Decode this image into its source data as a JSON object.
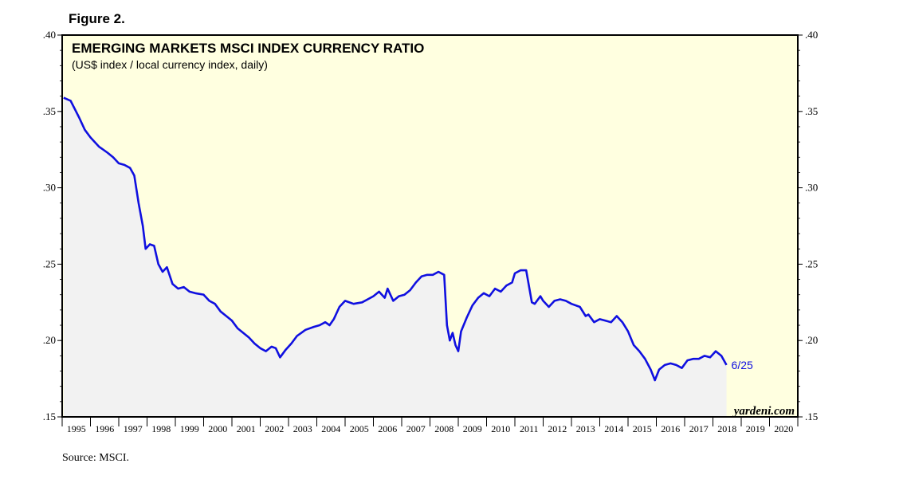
{
  "figure_label": "Figure 2.",
  "source": "Source: MSCI.",
  "chart_data": {
    "type": "area",
    "title": "EMERGING MARKETS MSCI INDEX CURRENCY RATIO",
    "subtitle": "(US$ index / local currency index, daily)",
    "watermark": "yardeni.com",
    "end_label": "6/25",
    "ylim": [
      0.15,
      0.4
    ],
    "xlim": [
      1995.0,
      2021.0
    ],
    "y_ticks": [
      ".40",
      ".35",
      ".30",
      ".25",
      ".20",
      ".15"
    ],
    "y_tick_values": [
      0.4,
      0.35,
      0.3,
      0.25,
      0.2,
      0.15
    ],
    "x_tick_labels": [
      "1995",
      "1996",
      "1997",
      "1998",
      "1999",
      "2000",
      "2001",
      "2002",
      "2003",
      "2004",
      "2005",
      "2006",
      "2007",
      "2008",
      "2009",
      "2010",
      "2011",
      "2012",
      "2013",
      "2014",
      "2015",
      "2016",
      "2017",
      "2018",
      "2019",
      "2020"
    ],
    "colors": {
      "line": "#1010e0",
      "plot_bg": "#ffffe0",
      "area_fill": "#f2f2f2",
      "end_label": "#1010e0"
    },
    "series": [
      {
        "name": "EM MSCI currency ratio",
        "x": [
          1995.05,
          1995.3,
          1995.6,
          1995.8,
          1996.0,
          1996.3,
          1996.6,
          1996.8,
          1997.0,
          1997.2,
          1997.4,
          1997.55,
          1997.7,
          1997.85,
          1997.95,
          1998.1,
          1998.25,
          1998.4,
          1998.55,
          1998.7,
          1998.9,
          1999.1,
          1999.3,
          1999.5,
          1999.7,
          2000.0,
          2000.2,
          2000.4,
          2000.6,
          2000.8,
          2001.0,
          2001.2,
          2001.4,
          2001.6,
          2001.8,
          2002.0,
          2002.2,
          2002.4,
          2002.55,
          2002.7,
          2002.9,
          2003.1,
          2003.3,
          2003.6,
          2003.9,
          2004.1,
          2004.3,
          2004.45,
          2004.6,
          2004.8,
          2005.0,
          2005.3,
          2005.6,
          2005.8,
          2006.0,
          2006.2,
          2006.4,
          2006.5,
          2006.7,
          2006.9,
          2007.1,
          2007.3,
          2007.5,
          2007.7,
          2007.9,
          2008.1,
          2008.3,
          2008.5,
          2008.6,
          2008.7,
          2008.8,
          2008.9,
          2009.0,
          2009.1,
          2009.3,
          2009.5,
          2009.7,
          2009.9,
          2010.1,
          2010.3,
          2010.5,
          2010.7,
          2010.9,
          2011.0,
          2011.2,
          2011.4,
          2011.6,
          2011.7,
          2011.9,
          2012.0,
          2012.2,
          2012.4,
          2012.6,
          2012.8,
          2013.0,
          2013.3,
          2013.5,
          2013.6,
          2013.8,
          2014.0,
          2014.2,
          2014.4,
          2014.6,
          2014.8,
          2015.0,
          2015.2,
          2015.4,
          2015.6,
          2015.8,
          2015.95,
          2016.1,
          2016.3,
          2016.5,
          2016.7,
          2016.9,
          2017.1,
          2017.3,
          2017.5,
          2017.7,
          2017.9,
          2018.1,
          2018.3,
          2018.48
        ],
        "values": [
          0.359,
          0.357,
          0.346,
          0.338,
          0.333,
          0.327,
          0.323,
          0.32,
          0.316,
          0.315,
          0.313,
          0.308,
          0.29,
          0.275,
          0.26,
          0.263,
          0.262,
          0.25,
          0.245,
          0.248,
          0.237,
          0.234,
          0.235,
          0.232,
          0.231,
          0.23,
          0.226,
          0.224,
          0.219,
          0.216,
          0.213,
          0.208,
          0.205,
          0.202,
          0.198,
          0.195,
          0.193,
          0.196,
          0.195,
          0.189,
          0.194,
          0.198,
          0.203,
          0.207,
          0.209,
          0.21,
          0.212,
          0.21,
          0.214,
          0.222,
          0.226,
          0.224,
          0.225,
          0.227,
          0.229,
          0.232,
          0.228,
          0.234,
          0.226,
          0.229,
          0.23,
          0.233,
          0.238,
          0.242,
          0.243,
          0.243,
          0.245,
          0.243,
          0.21,
          0.2,
          0.205,
          0.197,
          0.193,
          0.206,
          0.215,
          0.223,
          0.228,
          0.231,
          0.229,
          0.234,
          0.232,
          0.236,
          0.238,
          0.244,
          0.246,
          0.246,
          0.225,
          0.224,
          0.229,
          0.226,
          0.222,
          0.226,
          0.227,
          0.226,
          0.224,
          0.222,
          0.216,
          0.217,
          0.212,
          0.214,
          0.213,
          0.212,
          0.216,
          0.212,
          0.206,
          0.197,
          0.193,
          0.188,
          0.181,
          0.174,
          0.181,
          0.184,
          0.185,
          0.184,
          0.182,
          0.187,
          0.188,
          0.188,
          0.19,
          0.189,
          0.193,
          0.19,
          0.184
        ]
      }
    ]
  }
}
